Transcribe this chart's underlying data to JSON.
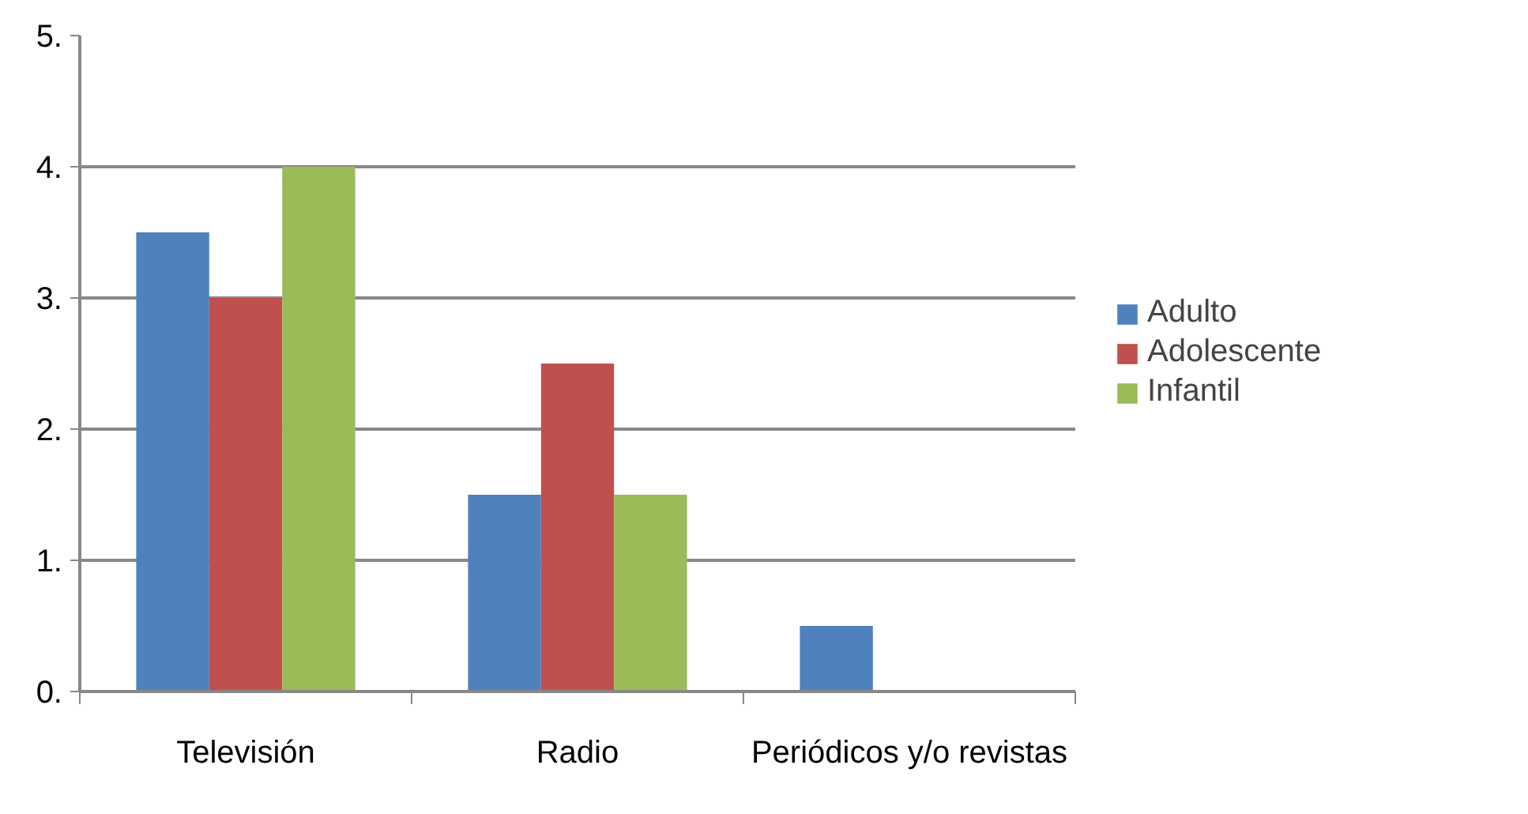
{
  "chart_data": {
    "type": "bar",
    "categories": [
      "Televisión",
      "Radio",
      "Periódicos y/o revistas"
    ],
    "series": [
      {
        "name": "Adulto",
        "color": "#4f81bd",
        "values": [
          3.5,
          1.5,
          0.5
        ]
      },
      {
        "name": "Adolescente",
        "color": "#c0504d",
        "values": [
          3,
          2.5,
          0
        ]
      },
      {
        "name": "Infantil",
        "color": "#9bbb59",
        "values": [
          4,
          1.5,
          0
        ]
      }
    ],
    "ylim": [
      0,
      5
    ],
    "yticks": [
      {
        "value": 0,
        "label": "0."
      },
      {
        "value": 1,
        "label": "1."
      },
      {
        "value": 2,
        "label": "2."
      },
      {
        "value": 3,
        "label": "3."
      },
      {
        "value": 4,
        "label": "4."
      },
      {
        "value": 5,
        "label": "5."
      }
    ],
    "grid": "y",
    "legend": "right"
  }
}
